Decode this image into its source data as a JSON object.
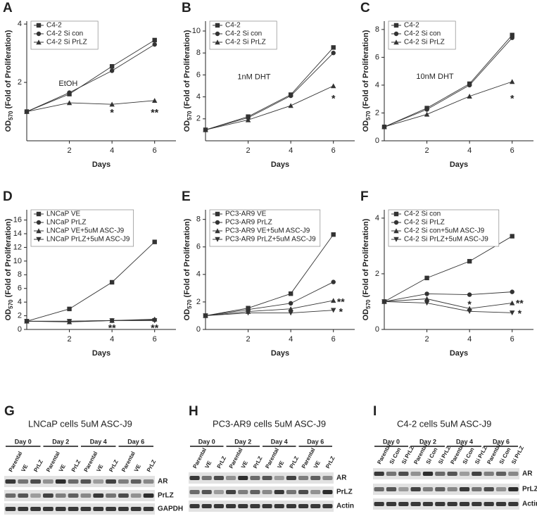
{
  "chart_data": [
    {
      "type": "line",
      "panel": "A",
      "ylabel": "OD",
      "ylabel_sub": "570",
      "ylabel_rest": " (Fold of Proliferation)",
      "xlabel": "Days",
      "x": [
        0,
        2,
        4,
        6
      ],
      "xlim": [
        0,
        7
      ],
      "xticks": [
        2,
        4,
        6
      ],
      "ylim": [
        0,
        4.1
      ],
      "yticks": [
        2,
        4
      ],
      "legend": "upper left",
      "series": [
        {
          "name": "C4-2",
          "color": "#333333",
          "marker": "square",
          "values": [
            1,
            1.6,
            2.55,
            3.45
          ]
        },
        {
          "name": "C4-2 Si con",
          "color": "#333333",
          "marker": "circle",
          "values": [
            1,
            1.65,
            2.4,
            3.3
          ]
        },
        {
          "name": "C4-2 Si PrLZ",
          "color": "#333333",
          "marker": "triangle-up",
          "values": [
            1,
            1.3,
            1.25,
            1.38
          ]
        }
      ],
      "annotations": [
        {
          "text": "EtOH",
          "x": 1.5,
          "y": 1.95
        },
        {
          "text": "*",
          "x": 4,
          "y": 0.95
        },
        {
          "text": "**",
          "x": 6,
          "y": 0.95
        }
      ]
    },
    {
      "type": "line",
      "panel": "B",
      "ylabel": "OD",
      "ylabel_sub": "570",
      "ylabel_rest": " (Fold of Proliferation)",
      "xlabel": "Days",
      "x": [
        0,
        2,
        4,
        6
      ],
      "xlim": [
        0,
        7
      ],
      "xticks": [
        2,
        4,
        6
      ],
      "ylim": [
        0,
        10.9
      ],
      "yticks": [
        2,
        4,
        6,
        8,
        10
      ],
      "legend": "upper left",
      "series": [
        {
          "name": "C4-2",
          "color": "#333333",
          "marker": "square",
          "values": [
            1,
            2.2,
            4.2,
            8.5
          ]
        },
        {
          "name": "C4-2 Si con",
          "color": "#333333",
          "marker": "circle",
          "values": [
            1,
            2.1,
            4.1,
            8.0
          ]
        },
        {
          "name": "C4-2 Si PrLZ",
          "color": "#333333",
          "marker": "triangle-up",
          "values": [
            1,
            1.9,
            3.2,
            5.0
          ]
        }
      ],
      "annotations": [
        {
          "text": "1nM DHT",
          "x": 1.5,
          "y": 5.8
        },
        {
          "text": "*",
          "x": 6,
          "y": 3.8
        }
      ]
    },
    {
      "type": "line",
      "panel": "C",
      "ylabel": "OD",
      "ylabel_sub": "570",
      "ylabel_rest": " (Fold of Proliferation)",
      "xlabel": "Days",
      "x": [
        0,
        2,
        4,
        6
      ],
      "xlim": [
        0,
        7
      ],
      "xticks": [
        2,
        4,
        6
      ],
      "ylim": [
        0,
        8.6
      ],
      "yticks": [
        0,
        2,
        4,
        6,
        8
      ],
      "legend": "upper left",
      "series": [
        {
          "name": "C4-2",
          "color": "#333333",
          "marker": "square",
          "values": [
            1,
            2.35,
            4.1,
            7.6
          ]
        },
        {
          "name": "C4-2 Si con",
          "color": "#333333",
          "marker": "circle",
          "values": [
            1,
            2.25,
            4.0,
            7.4
          ]
        },
        {
          "name": "C4-2 Si PrLZ",
          "color": "#333333",
          "marker": "triangle-up",
          "values": [
            1,
            1.9,
            3.2,
            4.25
          ]
        }
      ],
      "annotations": [
        {
          "text": "10nM DHT",
          "x": 1.5,
          "y": 4.6
        },
        {
          "text": "*",
          "x": 6,
          "y": 3.0
        }
      ]
    },
    {
      "type": "line",
      "panel": "D",
      "ylabel": "OD",
      "ylabel_sub": "570",
      "ylabel_rest": " (Fold of Proliferation)",
      "xlabel": "Days",
      "x": [
        0,
        2,
        4,
        6
      ],
      "xlim": [
        0,
        7
      ],
      "xticks": [
        2,
        4,
        6
      ],
      "ylim": [
        0,
        17.5
      ],
      "yticks": [
        0,
        2,
        4,
        6,
        8,
        10,
        12,
        14,
        16
      ],
      "legend": "upper left",
      "series": [
        {
          "name": "LNCaP VE",
          "color": "#333333",
          "marker": "square",
          "values": [
            1.2,
            3.0,
            6.9,
            12.8
          ]
        },
        {
          "name": "LNCaP PrLZ",
          "color": "#333333",
          "marker": "circle",
          "values": [
            1.2,
            1.2,
            1.3,
            1.4
          ]
        },
        {
          "name": "LNCaP VE+5uM ASC-J9",
          "color": "#333333",
          "marker": "triangle-up",
          "values": [
            1.2,
            1.1,
            1.3,
            1.5
          ]
        },
        {
          "name": "LNCaP PrLZ+5uM ASC-J9",
          "color": "#333333",
          "marker": "triangle-down",
          "values": [
            1.2,
            1.2,
            1.3,
            1.3
          ]
        }
      ],
      "annotations": [
        {
          "text": "**",
          "x": 4,
          "y": 0.1
        },
        {
          "text": "**",
          "x": 6,
          "y": 0.1
        }
      ]
    },
    {
      "type": "line",
      "panel": "E",
      "ylabel": "OD",
      "ylabel_sub": "570",
      "ylabel_rest": " (Fold of Proliferation)",
      "xlabel": "Days",
      "x": [
        0,
        2,
        4,
        6
      ],
      "xlim": [
        0,
        7
      ],
      "xticks": [
        2,
        4,
        6
      ],
      "ylim": [
        0,
        8.7
      ],
      "yticks": [
        0,
        2,
        4,
        6,
        8
      ],
      "legend": "upper left",
      "series": [
        {
          "name": "PC3-AR9 VE",
          "color": "#333333",
          "marker": "square",
          "values": [
            1,
            1.55,
            2.6,
            6.9
          ]
        },
        {
          "name": "PC3-AR9 PrLZ",
          "color": "#333333",
          "marker": "circle",
          "values": [
            1,
            1.45,
            1.9,
            3.45
          ]
        },
        {
          "name": "PC3-AR9 VE+5uM ASC-J9",
          "color": "#333333",
          "marker": "triangle-up",
          "values": [
            1,
            1.3,
            1.5,
            2.1
          ]
        },
        {
          "name": "PC3-AR9 PrLZ+5uM ASC-J9",
          "color": "#333333",
          "marker": "triangle-down",
          "values": [
            1,
            1.2,
            1.2,
            1.4
          ]
        }
      ],
      "annotations": [
        {
          "text": "**",
          "x": 6.35,
          "y": 1.95
        },
        {
          "text": "*",
          "x": 6.35,
          "y": 1.25
        }
      ]
    },
    {
      "type": "line",
      "panel": "F",
      "ylabel": "OD",
      "ylabel_sub": "570",
      "ylabel_rest": " (Fold of Proliferation)",
      "xlabel": "Days",
      "x": [
        0,
        2,
        4,
        6
      ],
      "xlim": [
        0,
        7
      ],
      "xticks": [
        2,
        4,
        6
      ],
      "ylim": [
        0,
        4.3
      ],
      "yticks": [
        0,
        2,
        4
      ],
      "legend": "upper left",
      "series": [
        {
          "name": "C4-2 Si con",
          "color": "#333333",
          "marker": "square",
          "values": [
            1,
            1.85,
            2.45,
            3.35
          ]
        },
        {
          "name": "C4-2 Si PrLZ",
          "color": "#333333",
          "marker": "circle",
          "values": [
            1,
            1.28,
            1.25,
            1.35
          ]
        },
        {
          "name": "C4-2 Si con+5uM ASC-J9",
          "color": "#333333",
          "marker": "triangle-up",
          "values": [
            1,
            1.1,
            0.75,
            0.95
          ]
        },
        {
          "name": "C4-2 Si PrLZ+5uM ASC-J9",
          "color": "#333333",
          "marker": "triangle-down",
          "values": [
            1,
            0.95,
            0.65,
            0.6
          ]
        }
      ],
      "annotations": [
        {
          "text": "*",
          "x": 4,
          "y": 0.88
        },
        {
          "text": "**",
          "x": 6.35,
          "y": 0.92
        },
        {
          "text": "*",
          "x": 6.35,
          "y": 0.55
        }
      ]
    }
  ],
  "blot_panels": [
    {
      "panel": "G",
      "title": "LNCaP cells 5uM ASC-J9",
      "days": [
        "Day 0",
        "Day 2",
        "Day 4",
        "Day 6"
      ],
      "lanes": [
        "Parental",
        "VE",
        "PrLZ"
      ],
      "rows": [
        "AR",
        "PrLZ",
        "GAPDH"
      ]
    },
    {
      "panel": "H",
      "title": "PC3-AR9 cells 5uM ASC-J9",
      "days": [
        "Day 0",
        "Day 2",
        "Day 4",
        "Day 6"
      ],
      "lanes": [
        "Parental",
        "VE",
        "PrLZ"
      ],
      "rows": [
        "AR",
        "PrLZ",
        "Actin"
      ]
    },
    {
      "panel": "I",
      "title": "C4-2 cells 5uM ASC-J9",
      "days": [
        "Day 0",
        "Day 2",
        "Day 4",
        "Day 6"
      ],
      "lanes": [
        "Parental",
        "Si Con",
        "Si PrLZ"
      ],
      "rows": [
        "AR",
        "PrLZ",
        "Actin"
      ]
    }
  ]
}
